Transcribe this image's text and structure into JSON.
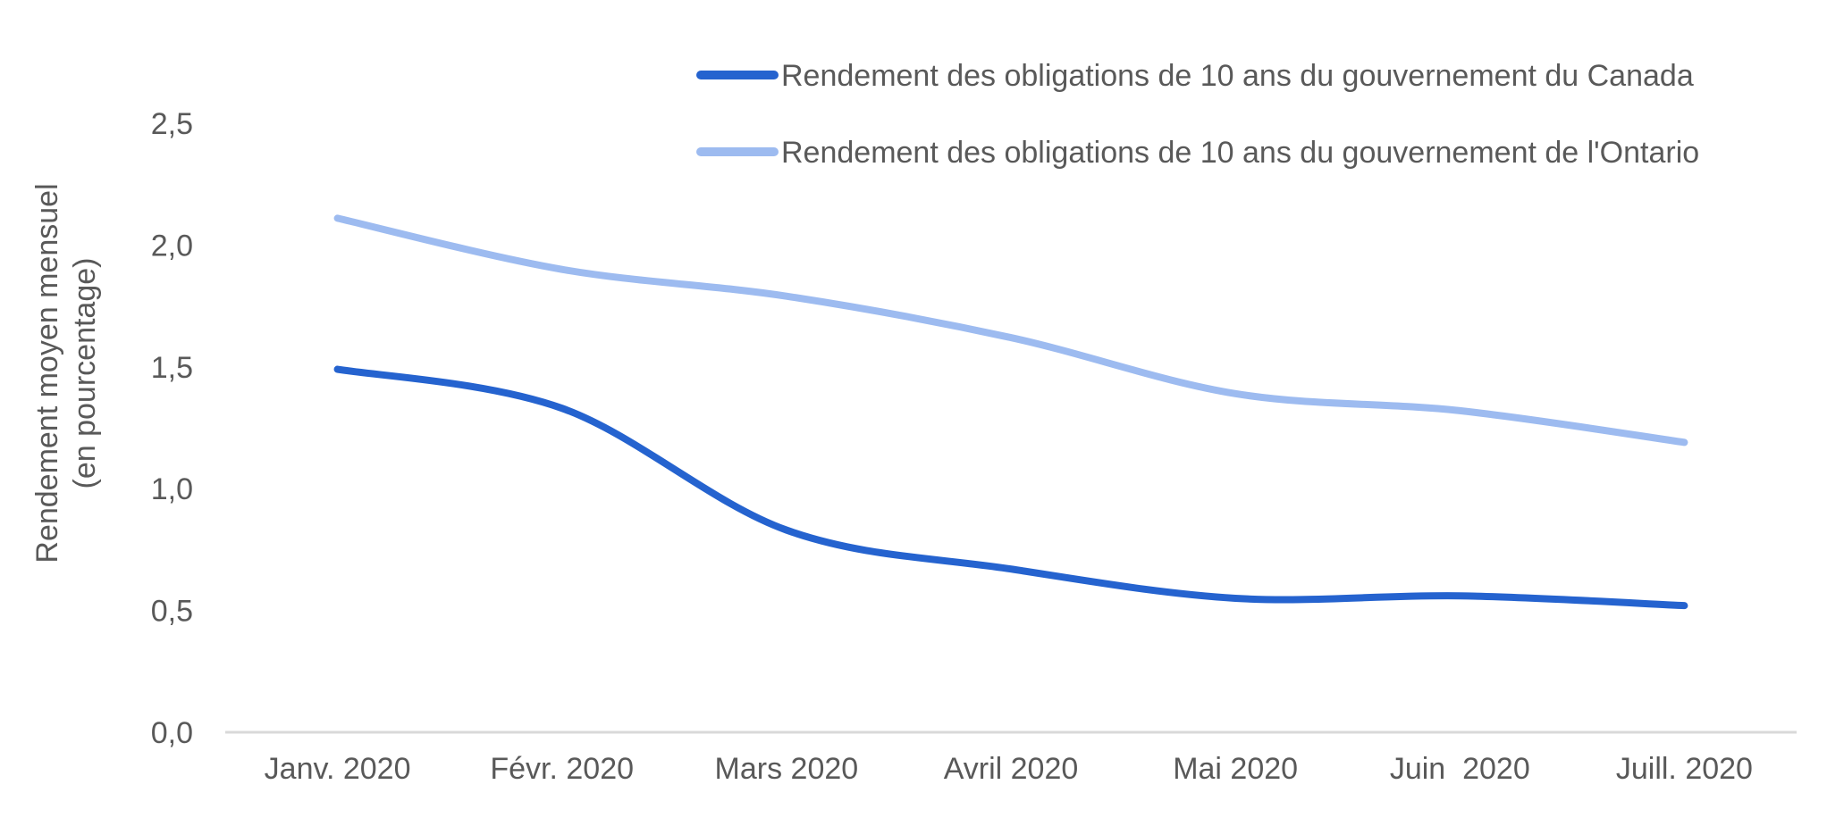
{
  "chart_data": {
    "type": "line",
    "title": "",
    "xlabel": "",
    "ylabel_lines": [
      "Rendement moyen mensuel",
      "(en pourcentage)"
    ],
    "categories": [
      "Janv. 2020",
      "Févr. 2020",
      "Mars 2020",
      "Avril 2020",
      "Mai 2020",
      "Juin  2020",
      "Juill. 2020"
    ],
    "ylim": [
      0,
      2.5
    ],
    "yticks": [
      "0,0",
      "0,5",
      "1,0",
      "1,5",
      "2,0",
      "2,5"
    ],
    "grid": false,
    "legend_position": "top-right",
    "series": [
      {
        "name": "Rendement des obligations de 10 ans du gouvernement du Canada",
        "color": "#2563cf",
        "values": [
          1.49,
          1.33,
          0.83,
          0.67,
          0.55,
          0.56,
          0.52
        ]
      },
      {
        "name": "Rendement des obligations de 10 ans du gouvernement de l'Ontario",
        "color": "#9dbbf0",
        "values": [
          2.11,
          1.9,
          1.79,
          1.62,
          1.39,
          1.32,
          1.19
        ]
      }
    ]
  }
}
